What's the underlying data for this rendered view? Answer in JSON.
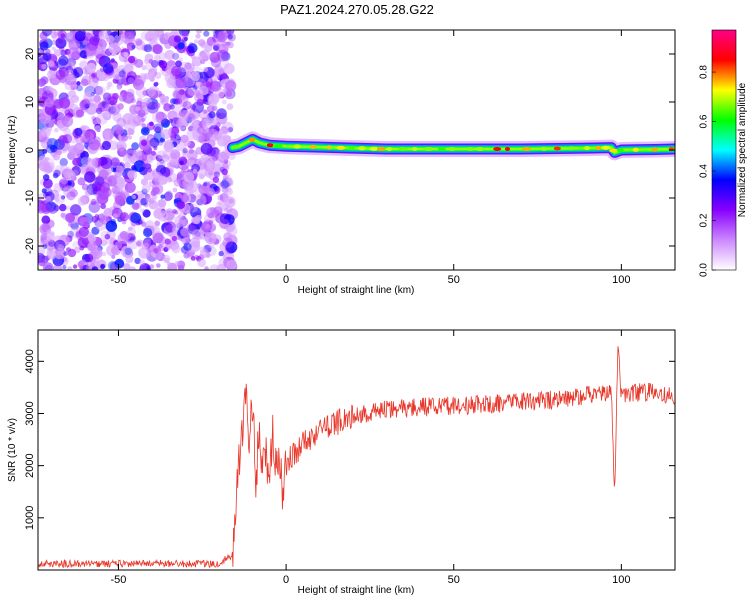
{
  "page": {
    "title": "PAZ1.2024.270.05.28.G22"
  },
  "chart_data": [
    {
      "type": "heatmap",
      "xlabel": "Height of straight line (km)",
      "ylabel": "Frequency (Hz)",
      "xlim": [
        -74,
        116
      ],
      "ylim": [
        -25,
        25
      ],
      "xticks": [
        -50,
        0,
        50,
        100
      ],
      "yticks": [
        -20,
        -10,
        0,
        10,
        20
      ],
      "colorbar": {
        "label": "Normalized spectral amplitude",
        "range": [
          0,
          0.97
        ],
        "ticks": [
          0.0,
          0.2,
          0.4,
          0.6,
          0.8
        ],
        "colors": [
          "#ffffff",
          "#cc88ff",
          "#8800ff",
          "#0000ff",
          "#00ffff",
          "#00ff00",
          "#ffff00",
          "#ff0000",
          "#ff0088"
        ]
      },
      "noise_region": {
        "x_range": [
          -74,
          -16
        ],
        "y_range": [
          -25,
          25
        ],
        "peak_amplitude": 0.35
      },
      "signal_track": {
        "x": [
          -16,
          -14,
          -12,
          -10,
          -8,
          -5,
          0,
          10,
          20,
          30,
          50,
          70,
          90,
          97,
          98,
          100,
          110,
          116
        ],
        "frequency": [
          0.5,
          0.8,
          1.5,
          2.2,
          1.5,
          1.0,
          0.8,
          0.6,
          0.4,
          0.2,
          0.2,
          0.2,
          0.4,
          0.5,
          -0.5,
          0.0,
          0.1,
          0.2
        ],
        "peak_amplitude": 0.9
      }
    },
    {
      "type": "line",
      "xlabel": "Height of straight line (km)",
      "ylabel": "SNR (10 * v/v)",
      "xlim": [
        -74,
        116
      ],
      "ylim": [
        0,
        4600
      ],
      "xticks": [
        -50,
        0,
        50,
        100
      ],
      "yticks": [
        1000,
        2000,
        3000,
        4000
      ],
      "color": "#e8372a",
      "series": [
        {
          "x": [
            -74,
            -20,
            -16,
            -15,
            -14,
            -13,
            -12,
            -11,
            -10,
            -9,
            -8,
            -7,
            -6,
            -5,
            -4,
            -3,
            -2,
            -1,
            0,
            2,
            4,
            6,
            8,
            10,
            12,
            14,
            16,
            18,
            20,
            25,
            30,
            35,
            40,
            50,
            60,
            70,
            80,
            90,
            96,
            97,
            98,
            99,
            100,
            105,
            110,
            116
          ],
          "y": [
            120,
            120,
            300,
            1400,
            2000,
            2800,
            3400,
            2400,
            3200,
            1800,
            2600,
            1900,
            2400,
            1600,
            2600,
            2000,
            2200,
            1500,
            2000,
            2200,
            2350,
            2450,
            2600,
            2650,
            2750,
            2800,
            2850,
            2900,
            2950,
            3020,
            3080,
            3100,
            3120,
            3150,
            3180,
            3220,
            3260,
            3350,
            3400,
            3450,
            1400,
            4500,
            3350,
            3400,
            3450,
            3300
          ]
        }
      ]
    }
  ]
}
